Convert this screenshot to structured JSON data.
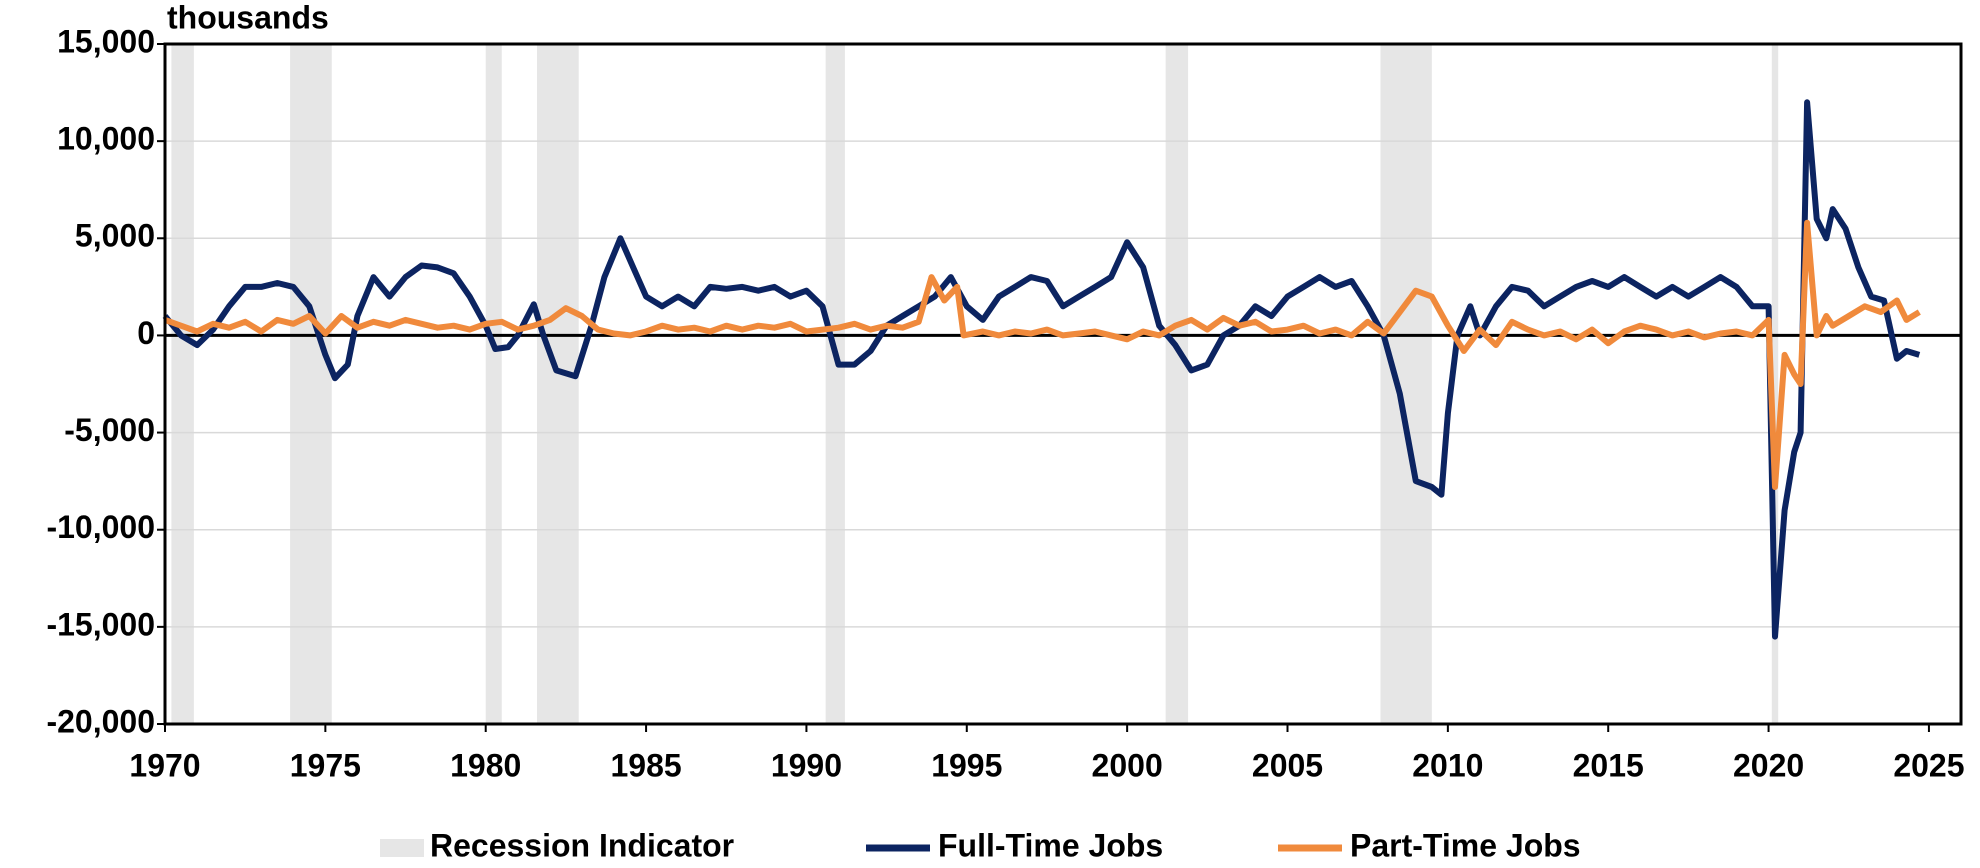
{
  "chart_data": {
    "type": "line",
    "title": "thousands",
    "xlim": [
      1970,
      2026
    ],
    "xticks": [
      1970,
      1975,
      1980,
      1985,
      1990,
      1995,
      2000,
      2005,
      2010,
      2015,
      2020,
      2025
    ],
    "ylim": [
      -20000,
      15000
    ],
    "yticks": [
      {
        "value": -20000,
        "label": "-20,000"
      },
      {
        "value": -15000,
        "label": "-15,000"
      },
      {
        "value": -10000,
        "label": "-10,000"
      },
      {
        "value": -5000,
        "label": "-5,000"
      },
      0,
      {
        "value": 5000,
        "label": "5,000"
      },
      {
        "value": 10000,
        "label": "10,000"
      },
      {
        "value": 15000,
        "label": "15,000"
      }
    ],
    "grid": true,
    "legend": "bottom",
    "recessions": {
      "name": "Recession Indicator",
      "color": "#e6e6e6",
      "periods": [
        [
          1970.2,
          1970.9
        ],
        [
          1973.9,
          1975.2
        ],
        [
          1980.0,
          1980.5
        ],
        [
          1981.6,
          1982.9
        ],
        [
          1990.6,
          1991.2
        ],
        [
          2001.2,
          2001.9
        ],
        [
          2007.9,
          2009.5
        ],
        [
          2020.1,
          2020.3
        ]
      ]
    },
    "series": [
      {
        "name": "Full-Time Jobs",
        "color": "#0c2461",
        "x": [
          1970,
          1970.5,
          1971,
          1971.5,
          1972,
          1972.5,
          1973,
          1973.5,
          1974,
          1974.5,
          1975,
          1975.3,
          1975.7,
          1976,
          1976.5,
          1977,
          1977.5,
          1978,
          1978.5,
          1979,
          1979.5,
          1980,
          1980.3,
          1980.7,
          1981,
          1981.5,
          1981.8,
          1982.2,
          1982.8,
          1983.3,
          1983.7,
          1984.2,
          1984.6,
          1985,
          1985.5,
          1986,
          1986.5,
          1987,
          1987.5,
          1988,
          1988.5,
          1989,
          1989.5,
          1990,
          1990.5,
          1991,
          1991.5,
          1992,
          1992.5,
          1993,
          1993.5,
          1994,
          1994.5,
          1995,
          1995.5,
          1996,
          1996.5,
          1997,
          1997.5,
          1998,
          1998.5,
          1999,
          1999.5,
          2000,
          2000.5,
          2001,
          2001.5,
          2002,
          2002.5,
          2003,
          2003.5,
          2004,
          2004.5,
          2005,
          2005.5,
          2006,
          2006.5,
          2007,
          2007.5,
          2008,
          2008.5,
          2009,
          2009.5,
          2009.8,
          2010,
          2010.3,
          2010.7,
          2011,
          2011.5,
          2012,
          2012.5,
          2013,
          2013.5,
          2014,
          2014.5,
          2015,
          2015.5,
          2016,
          2016.5,
          2017,
          2017.5,
          2018,
          2018.5,
          2019,
          2019.5,
          2020,
          2020.2,
          2020.5,
          2020.8,
          2021,
          2021.2,
          2021.5,
          2021.8,
          2022,
          2022.4,
          2022.8,
          2023.2,
          2023.6,
          2024,
          2024.3,
          2024.7
        ],
        "values": [
          1000,
          0,
          -500,
          300,
          1500,
          2500,
          2500,
          2700,
          2500,
          1500,
          -1000,
          -2200,
          -1500,
          1000,
          3000,
          2000,
          3000,
          3600,
          3500,
          3200,
          2000,
          500,
          -700,
          -600,
          0,
          1600,
          0,
          -1800,
          -2100,
          500,
          3000,
          5000,
          3500,
          2000,
          1500,
          2000,
          1500,
          2500,
          2400,
          2500,
          2300,
          2500,
          2000,
          2300,
          1500,
          -1500,
          -1500,
          -800,
          500,
          1000,
          1500,
          2000,
          3000,
          1500,
          800,
          2000,
          2500,
          3000,
          2800,
          1500,
          2000,
          2500,
          3000,
          4800,
          3500,
          500,
          -500,
          -1800,
          -1500,
          0,
          500,
          1500,
          1000,
          2000,
          2500,
          3000,
          2500,
          2800,
          1500,
          0,
          -3000,
          -7500,
          -7800,
          -8200,
          -4000,
          0,
          1500,
          0,
          1500,
          2500,
          2300,
          1500,
          2000,
          2500,
          2800,
          2500,
          3000,
          2500,
          2000,
          2500,
          2000,
          2500,
          3000,
          2500,
          1500,
          1500,
          -15500,
          -9000,
          -6000,
          -5000,
          12000,
          6000,
          5000,
          6500,
          5500,
          3500,
          2000,
          1800,
          -1200,
          -800,
          -1000
        ]
      },
      {
        "name": "Part-Time Jobs",
        "color": "#f08a3c",
        "x": [
          1970,
          1970.5,
          1971,
          1971.5,
          1972,
          1972.5,
          1973,
          1973.5,
          1974,
          1974.5,
          1975,
          1975.5,
          1976,
          1976.5,
          1977,
          1977.5,
          1978,
          1978.5,
          1979,
          1979.5,
          1980,
          1980.5,
          1981,
          1981.5,
          1982,
          1982.5,
          1983,
          1983.5,
          1984,
          1984.5,
          1985,
          1985.5,
          1986,
          1986.5,
          1987,
          1987.5,
          1988,
          1988.5,
          1989,
          1989.5,
          1990,
          1990.5,
          1991,
          1991.5,
          1992,
          1992.5,
          1993,
          1993.5,
          1993.9,
          1994.3,
          1994.7,
          1994.9,
          1995.5,
          1996,
          1996.5,
          1997,
          1997.5,
          1998,
          1998.5,
          1999,
          1999.5,
          2000,
          2000.5,
          2001,
          2001.5,
          2002,
          2002.5,
          2003,
          2003.5,
          2004,
          2004.5,
          2005,
          2005.5,
          2006,
          2006.5,
          2007,
          2007.5,
          2008,
          2008.5,
          2009,
          2009.5,
          2010,
          2010.5,
          2011,
          2011.5,
          2012,
          2012.5,
          2013,
          2013.5,
          2014,
          2014.5,
          2015,
          2015.5,
          2016,
          2016.5,
          2017,
          2017.5,
          2018,
          2018.5,
          2019,
          2019.5,
          2020,
          2020.2,
          2020.5,
          2020.8,
          2021,
          2021.2,
          2021.5,
          2021.8,
          2022,
          2022.5,
          2023,
          2023.5,
          2024,
          2024.3,
          2024.7
        ],
        "values": [
          800,
          500,
          200,
          600,
          400,
          700,
          200,
          800,
          600,
          1000,
          100,
          1000,
          400,
          700,
          500,
          800,
          600,
          400,
          500,
          300,
          600,
          700,
          300,
          500,
          800,
          1400,
          1000,
          300,
          100,
          0,
          200,
          500,
          300,
          400,
          200,
          500,
          300,
          500,
          400,
          600,
          200,
          300,
          400,
          600,
          300,
          500,
          400,
          700,
          3000,
          1800,
          2500,
          0,
          200,
          0,
          200,
          100,
          300,
          0,
          100,
          200,
          0,
          -200,
          200,
          0,
          500,
          800,
          300,
          900,
          500,
          700,
          200,
          300,
          500,
          100,
          300,
          0,
          700,
          100,
          1200,
          2300,
          2000,
          500,
          -800,
          300,
          -500,
          700,
          300,
          0,
          200,
          -200,
          300,
          -400,
          200,
          500,
          300,
          0,
          200,
          -100,
          100,
          200,
          0,
          800,
          -7800,
          -1000,
          -2000,
          -2500,
          5800,
          0,
          1000,
          500,
          1000,
          1500,
          1200,
          1800,
          800,
          1200
        ]
      }
    ]
  }
}
